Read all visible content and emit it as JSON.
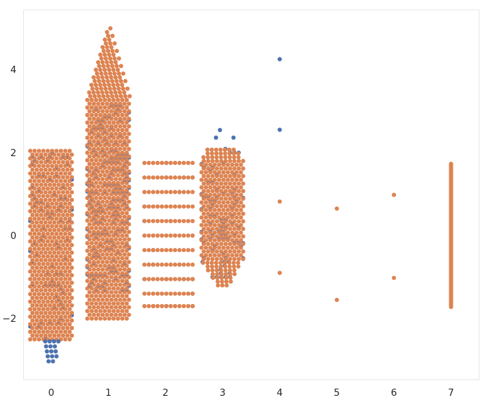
{
  "chart_data": {
    "type": "scatter",
    "subtype": "swarm",
    "title": "",
    "xlabel": "",
    "ylabel": "",
    "categories": [
      "0",
      "1",
      "2",
      "3",
      "4",
      "5",
      "6",
      "7"
    ],
    "x_ticks": [
      "0",
      "1",
      "2",
      "3",
      "4",
      "5",
      "6",
      "7"
    ],
    "y_ticks": [
      "−2",
      "0",
      "2",
      "4"
    ],
    "y_tick_values": [
      -2,
      0,
      2,
      4
    ],
    "ylim": [
      -3.5,
      5.5
    ],
    "grid": false,
    "legend": "none",
    "colors": {
      "series_a": "#4c72b0",
      "series_b": "#dd8452"
    },
    "series": [
      {
        "color": "#4c72b0",
        "groups": [
          {
            "category": 0,
            "y_min": -3.1,
            "y_max": 2.05,
            "shape": "band",
            "tail_low": -3.1,
            "share": 0.15
          },
          {
            "category": 1,
            "y_min": -1.3,
            "y_max": 3.2,
            "shape": "band",
            "share": 0.35
          },
          {
            "category": 2,
            "levels": [
              -1.7,
              -1.4,
              -1.05,
              -0.7,
              -0.35,
              0,
              0.35,
              0.7,
              1.05,
              1.4,
              1.75
            ],
            "shape": "rows",
            "share": 0.15
          },
          {
            "category": 3,
            "y_min": -1.0,
            "y_max": 2.8,
            "shape": "band",
            "share": 0.2
          },
          {
            "category": 4,
            "values": [
              4.25,
              2.55
            ]
          },
          {
            "category": 5,
            "values": []
          },
          {
            "category": 6,
            "values": []
          },
          {
            "category": 7,
            "values": []
          }
        ]
      },
      {
        "color": "#dd8452",
        "groups": [
          {
            "category": 0,
            "y_min": -2.5,
            "y_max": 2.05,
            "shape": "band"
          },
          {
            "category": 1,
            "y_min": -2.0,
            "y_max": 5.05,
            "shape": "band",
            "peak": 5.05
          },
          {
            "category": 2,
            "levels": [
              -1.7,
              -1.4,
              -1.05,
              -0.7,
              -0.35,
              0,
              0.35,
              0.7,
              1.05,
              1.4,
              1.75
            ],
            "shape": "rows"
          },
          {
            "category": 3,
            "y_min": -1.2,
            "y_max": 2.15,
            "shape": "band"
          },
          {
            "category": 4,
            "values": [
              0.82,
              -0.9
            ]
          },
          {
            "category": 5,
            "values": [
              0.65,
              -1.55
            ]
          },
          {
            "category": 6,
            "values": [
              0.98,
              -1.02
            ]
          },
          {
            "category": 7,
            "y_min": -1.72,
            "y_max": 1.75,
            "shape": "line"
          }
        ]
      }
    ]
  }
}
